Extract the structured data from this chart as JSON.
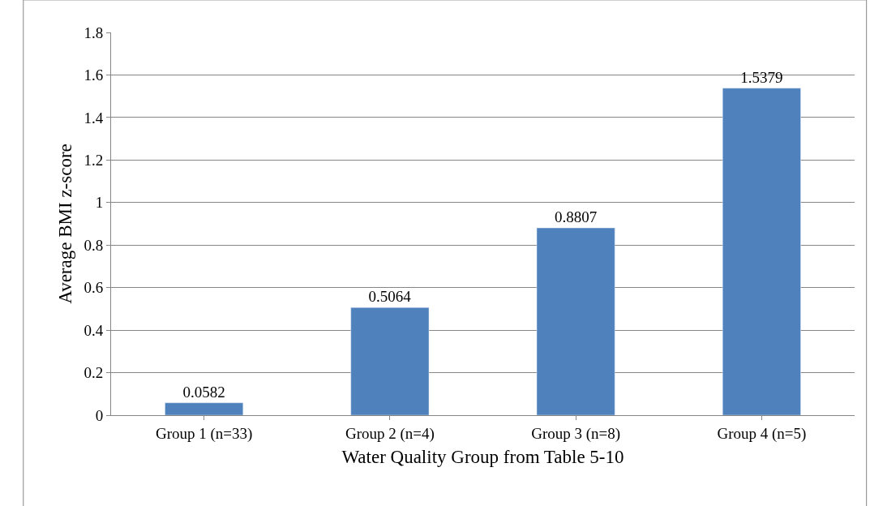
{
  "chart_data": {
    "type": "bar",
    "xlabel": "Water Quality Group from Table 5-10",
    "ylabel": "Average BMI z-score",
    "categories": [
      "Group 1 (n=33)",
      "Group 2 (n=4)",
      "Group 3 (n=8)",
      "Group 4 (n=5)"
    ],
    "values": [
      0.0582,
      0.5064,
      0.8807,
      1.5379
    ],
    "color": "#4f81bd",
    "ylim": [
      0,
      1.8
    ],
    "yticks": [
      0,
      0.2,
      0.4,
      0.6,
      0.8,
      1,
      1.2,
      1.4,
      1.6,
      1.8
    ],
    "grid": "y",
    "data_labels": true,
    "legend": false
  }
}
